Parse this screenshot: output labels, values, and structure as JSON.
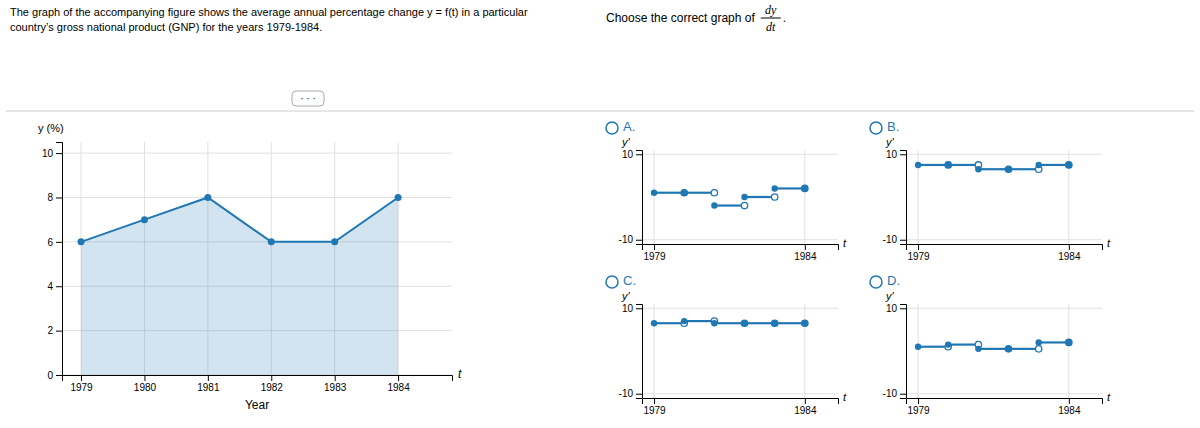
{
  "chart_data": [
    {
      "type": "area",
      "title": "The graph of the accompanying figure shows the average annual percentage change y = f(t) in a particular",
      "subtitle": "country’s gross national product (GNP) for the years 1979-1984.",
      "x": [
        1979,
        1980,
        1981,
        1982,
        1983,
        1984
      ],
      "values": [
        6,
        7,
        8,
        6,
        6,
        8
      ],
      "marker": "circle",
      "xlim": [
        1978.7,
        1984.85
      ],
      "xticks": [
        1979,
        1980,
        1981,
        1982,
        1983,
        1984
      ],
      "ylim": [
        0,
        10.5
      ],
      "yticks": [
        0,
        2,
        4,
        6,
        8,
        10
      ],
      "xlabel": "Year",
      "ylabel": "y (%)",
      "grid": true,
      "annotations": [
        "t",
        "· · ·",
        "Choose the correct graph of",
        "dy",
        "dt",
        "."
      ]
    },
    {
      "type": "step",
      "title": "A.",
      "bins": [
        1979,
        1980,
        1981,
        1982,
        1983,
        1984
      ],
      "values": [
        1,
        1,
        -2,
        0,
        2
      ],
      "xlim": [
        1978.6,
        1985.1
      ],
      "xticks": [
        1979,
        1984
      ],
      "ylim": [
        -11,
        11
      ],
      "yticks": [
        -10,
        10
      ],
      "xlabel": "t",
      "ylabel": "y'",
      "grid": true
    },
    {
      "type": "step",
      "title": "B.",
      "bins": [
        1979,
        1980,
        1981,
        1982,
        1983,
        1984
      ],
      "values": [
        7.5,
        7.5,
        6.5,
        6.5,
        7.5
      ],
      "xlim": [
        1978.6,
        1985.1
      ],
      "xticks": [
        1979,
        1984
      ],
      "ylim": [
        -11,
        11
      ],
      "yticks": [
        -10,
        10
      ],
      "xlabel": "t",
      "ylabel": "y'",
      "grid": true
    },
    {
      "type": "step",
      "title": "C.",
      "bins": [
        1979,
        1980,
        1981,
        1982,
        1983,
        1984
      ],
      "values": [
        6.5,
        7.0,
        6.5,
        6.5,
        6.5
      ],
      "xlim": [
        1978.6,
        1985.1
      ],
      "xticks": [
        1979,
        1984
      ],
      "ylim": [
        -11,
        11
      ],
      "yticks": [
        -10,
        10
      ],
      "xlabel": "t",
      "ylabel": "y'",
      "grid": true
    },
    {
      "type": "step",
      "title": "D.",
      "bins": [
        1979,
        1980,
        1981,
        1982,
        1983,
        1984
      ],
      "values": [
        1.0,
        1.5,
        0.5,
        0.5,
        2.0
      ],
      "xlim": [
        1978.6,
        1985.1
      ],
      "xticks": [
        1979,
        1984
      ],
      "ylim": [
        -11,
        11
      ],
      "yticks": [
        -10,
        10
      ],
      "xlabel": "t",
      "ylabel": "y'",
      "grid": true
    }
  ]
}
